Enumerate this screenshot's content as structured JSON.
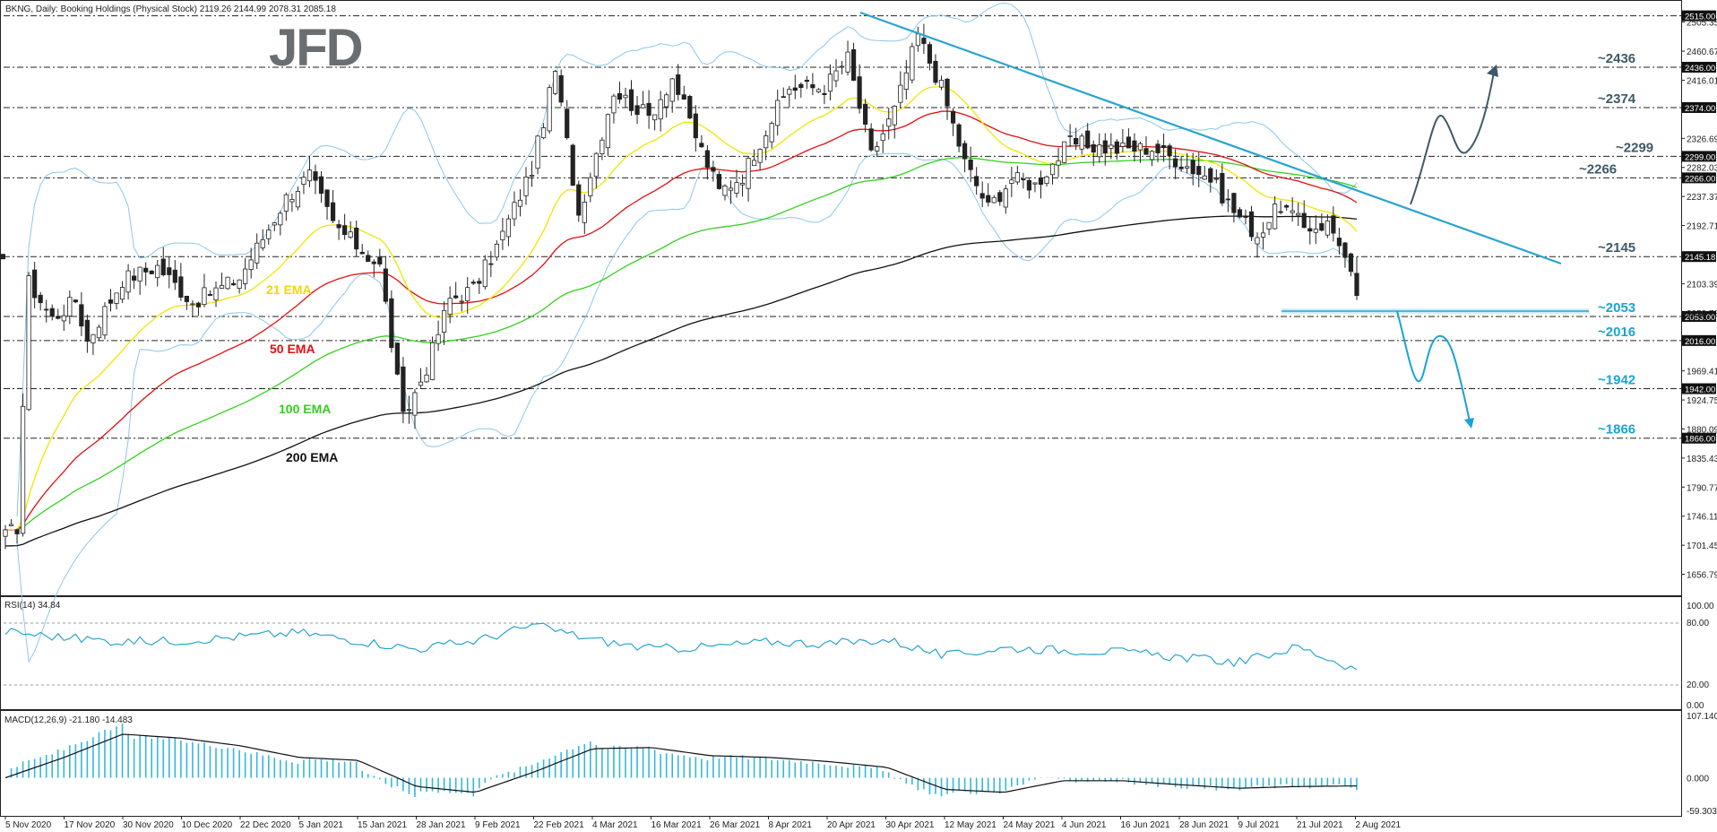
{
  "header": {
    "symbol_line": "BKNG, Daily: Booking Holdings (Physical Stock)  2119.26 2144.99 2078.31 2085.18"
  },
  "brand": {
    "logo_text": "JFD"
  },
  "colors": {
    "candle_up": "#ffffff",
    "candle_down": "#222222",
    "bollinger": "#8fc6e8",
    "ema21": "#f2e600",
    "ema50": "#e01010",
    "ema100": "#34d01e",
    "ema200": "#111111",
    "trendline": "#2aa4cf",
    "level_label": "#3f5966",
    "support_label": "#1aa3d4",
    "rsi_line": "#2aa4cf",
    "macd_hist": "#35b7dc",
    "macd_signal": "#111111"
  },
  "chart_data": [
    {
      "type": "candlestick",
      "title": "BKNG, Daily: Booking Holdings (Physical Stock)",
      "ohlc_last": {
        "open": 2119.26,
        "high": 2144.99,
        "low": 2078.31,
        "close": 2085.18
      },
      "x_tick_labels": [
        "5 Nov 2020",
        "17 Nov 2020",
        "30 Nov 2020",
        "10 Dec 2020",
        "22 Dec 2020",
        "5 Jan 2021",
        "15 Jan 2021",
        "28 Jan 2021",
        "9 Feb 2021",
        "22 Feb 2021",
        "4 Mar 2021",
        "16 Mar 2021",
        "26 Mar 2021",
        "8 Apr 2021",
        "20 Apr 2021",
        "30 Apr 2021",
        "12 May 2021",
        "24 May 2021",
        "4 Jun 2021",
        "16 Jun 2021",
        "28 Jun 2021",
        "9 Jul 2021",
        "21 Jul 2021",
        "2 Aug 2021"
      ],
      "y_tick_labels": [
        "2505.35",
        "2460.67",
        "2416.01",
        "2326.69",
        "2282.03",
        "2237.37",
        "2192.71",
        "2103.39",
        "2058.73",
        "1969.41",
        "1924.75",
        "1880.09",
        "1835.43",
        "1790.77",
        "1746.11",
        "1701.45",
        "1656.79"
      ],
      "ylim": [
        1630,
        2520
      ],
      "levels": [
        {
          "value": 2515.0,
          "axis_label": "2515.00",
          "note": ""
        },
        {
          "value": 2436.0,
          "axis_label": "2436.00",
          "note": "~2436"
        },
        {
          "value": 2374.0,
          "axis_label": "2374.00",
          "note": "~2374"
        },
        {
          "value": 2299.0,
          "axis_label": "2299.00",
          "note": "~2299"
        },
        {
          "value": 2266.0,
          "axis_label": "2266.00",
          "note": "~2266"
        },
        {
          "value": 2145.0,
          "axis_label": "2145.18",
          "note": "~2145"
        },
        {
          "value": 2053.0,
          "axis_label": "2053.00",
          "note": "~2053"
        },
        {
          "value": 2016.0,
          "axis_label": "2016.00",
          "note": "~2016"
        },
        {
          "value": 1942.0,
          "axis_label": "1942.00",
          "note": "~1942"
        },
        {
          "value": 1866.0,
          "axis_label": "1866.00",
          "note": "~1866"
        }
      ],
      "indicator_labels": [
        "21 EMA",
        "50 EMA",
        "100 EMA",
        "200 EMA"
      ],
      "series": [
        {
          "name": "close",
          "x": [
            "5 Nov 2020",
            "17 Nov 2020",
            "30 Nov 2020",
            "10 Dec 2020",
            "22 Dec 2020",
            "5 Jan 2021",
            "15 Jan 2021",
            "28 Jan 2021",
            "9 Feb 2021",
            "22 Feb 2021",
            "4 Mar 2021",
            "16 Mar 2021",
            "26 Mar 2021",
            "8 Apr 2021",
            "20 Apr 2021",
            "30 Apr 2021",
            "12 May 2021",
            "24 May 2021",
            "4 Jun 2021",
            "16 Jun 2021",
            "28 Jun 2021",
            "9 Jul 2021",
            "21 Jul 2021",
            "2 Aug 2021"
          ],
          "values": [
            1730,
            2000,
            2080,
            2100,
            2110,
            2270,
            2160,
            2010,
            2100,
            2430,
            2400,
            2370,
            2370,
            2440,
            2360,
            2400,
            2210,
            2340,
            2310,
            2260,
            2190,
            2140,
            2250,
            2085
          ]
        }
      ]
    },
    {
      "type": "line",
      "title": "RSI(14) 34.84",
      "y_tick_labels": [
        "100.00",
        "80.00",
        "20.00",
        "0.00"
      ],
      "ylim": [
        0,
        100
      ],
      "values": [
        72,
        66,
        62,
        63,
        67,
        71,
        63,
        55,
        63,
        78,
        64,
        55,
        57,
        62,
        60,
        64,
        48,
        56,
        54,
        52,
        47,
        42,
        57,
        35
      ]
    },
    {
      "type": "line",
      "title": "MACD(12,26,9) -21.180 -14.483",
      "y_tick_labels": [
        "107.140",
        "0.000",
        "-59.303"
      ],
      "ylim": [
        -59.303,
        107.14
      ],
      "macd": -21.18,
      "signal": -14.483,
      "signal_values": [
        0,
        35,
        75,
        68,
        55,
        35,
        30,
        -15,
        -25,
        10,
        50,
        52,
        38,
        35,
        28,
        18,
        -20,
        -25,
        -5,
        -5,
        -12,
        -18,
        -15,
        -14
      ]
    }
  ]
}
